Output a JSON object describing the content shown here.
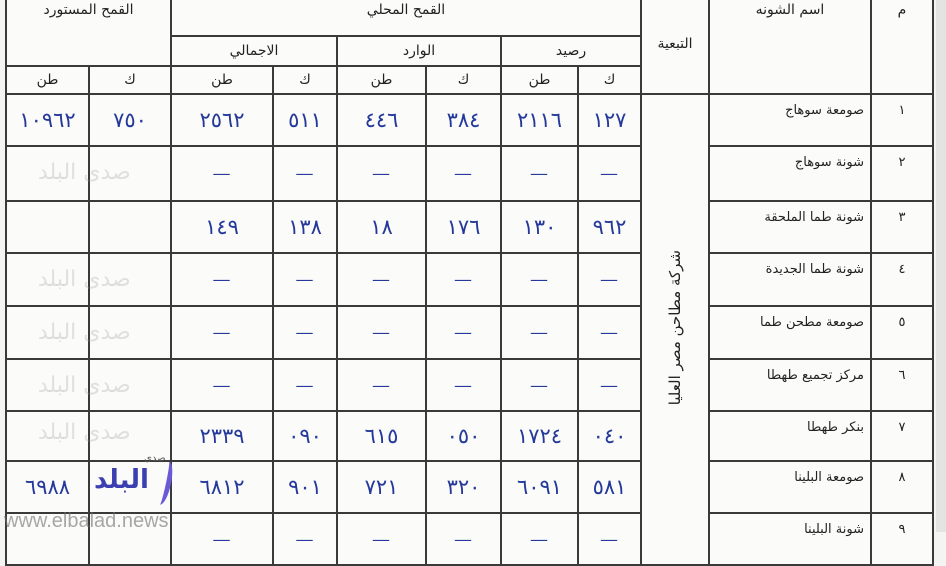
{
  "headers": {
    "serial": "م",
    "name": "اسم الشونه",
    "affiliation": "التبعية",
    "local_wheat": "القمح المحلي",
    "imported_wheat": "القمح المستورد",
    "balance": "رصيد",
    "incoming": "الوارد",
    "total": "الاجمالي",
    "unit_k": "ك",
    "unit_ton": "طن"
  },
  "affiliation_value": "شركة مطاحن مصر العليا",
  "rows": [
    {
      "no": "١",
      "name": "صومعة سوهاج",
      "bal_k": "١٢٧",
      "bal_t": "٢١١٦",
      "in_k": "٣٨٤",
      "in_t": "٤٤٦",
      "tot_k": "٥١١",
      "tot_t": "٢٥٦٢",
      "imp_k": "٧٥٠",
      "imp_t": "١٠٩٦٢"
    },
    {
      "no": "٢",
      "name": "شونة سوهاج",
      "bal_k": "—",
      "bal_t": "—",
      "in_k": "—",
      "in_t": "—",
      "tot_k": "—",
      "tot_t": "—",
      "imp_k": "",
      "imp_t": ""
    },
    {
      "no": "٣",
      "name": "شونة طما الملحقة",
      "bal_k": "٩٦٢",
      "bal_t": "١٣٠",
      "in_k": "١٧٦",
      "in_t": "١٨",
      "tot_k": "١٣٨",
      "tot_t": "١٤٩",
      "imp_k": "",
      "imp_t": ""
    },
    {
      "no": "٤",
      "name": "شونة طما الجديدة",
      "bal_k": "—",
      "bal_t": "—",
      "in_k": "—",
      "in_t": "—",
      "tot_k": "—",
      "tot_t": "—",
      "imp_k": "",
      "imp_t": ""
    },
    {
      "no": "٥",
      "name": "صومعة مطحن طما",
      "bal_k": "—",
      "bal_t": "—",
      "in_k": "—",
      "in_t": "—",
      "tot_k": "—",
      "tot_t": "—",
      "imp_k": "",
      "imp_t": ""
    },
    {
      "no": "٦",
      "name": "مركز تجميع طهطا",
      "bal_k": "—",
      "bal_t": "—",
      "in_k": "—",
      "in_t": "—",
      "tot_k": "—",
      "tot_t": "—",
      "imp_k": "",
      "imp_t": ""
    },
    {
      "no": "٧",
      "name": "بنكر طهطا",
      "bal_k": "٠٤٠",
      "bal_t": "١٧٢٤",
      "in_k": "٠٥٠",
      "in_t": "٦١٥",
      "tot_k": "٠٩٠",
      "tot_t": "٢٣٣٩",
      "imp_k": "",
      "imp_t": ""
    },
    {
      "no": "٨",
      "name": "صومعة البلينا",
      "bal_k": "٥٨١",
      "bal_t": "٦٠٩١",
      "in_k": "٣٢٠",
      "in_t": "٧٢١",
      "tot_k": "٩٠١",
      "tot_t": "٦٨١٢",
      "imp_k": "",
      "imp_t": "٦٩٨٨"
    },
    {
      "no": "٩",
      "name": "شونة البلينا",
      "bal_k": "—",
      "bal_t": "—",
      "in_k": "—",
      "in_t": "—",
      "tot_k": "—",
      "tot_t": "—",
      "imp_k": "",
      "imp_t": ""
    }
  ],
  "watermark": "صدى البلد",
  "website": "www.elbalad.news",
  "logo_text": "البلد",
  "logo_small": "صدى"
}
